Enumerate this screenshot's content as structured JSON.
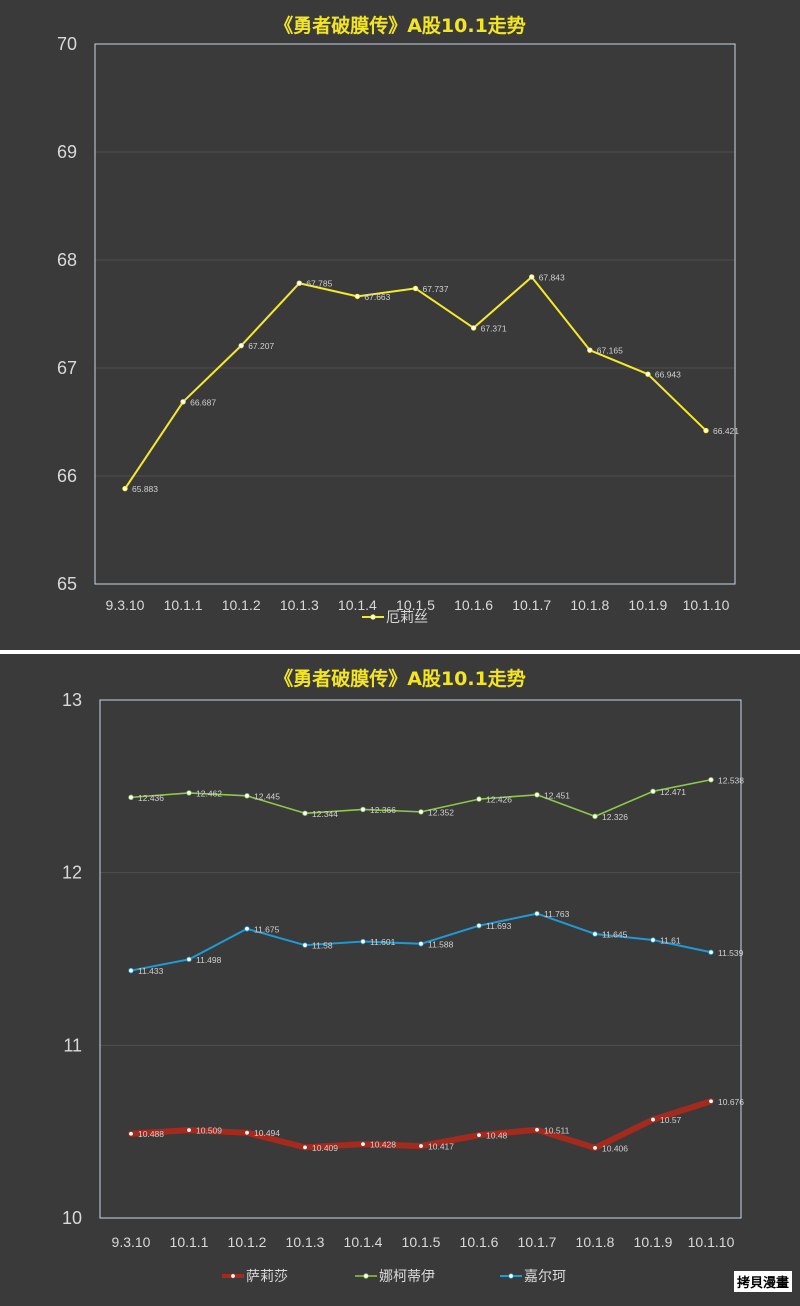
{
  "chart_data": [
    {
      "type": "line",
      "title": "《勇者破膜传》A股10.1走势",
      "categories": [
        "9.3.10",
        "10.1.1",
        "10.1.2",
        "10.1.3",
        "10.1.4",
        "10.1.5",
        "10.1.6",
        "10.1.7",
        "10.1.8",
        "10.1.9",
        "10.1.10"
      ],
      "ylim": [
        65,
        70
      ],
      "yticks": [
        "65",
        "66",
        "67",
        "68",
        "69",
        "70"
      ],
      "grid": true,
      "legend_position": "bottom",
      "series": [
        {
          "name": "厄莉丝",
          "color": "#f5ea2a",
          "values": [
            65.883,
            66.687,
            67.207,
            67.785,
            67.663,
            67.737,
            67.371,
            67.843,
            67.165,
            66.943,
            66.421
          ],
          "labels": [
            "65.883",
            "66.687",
            "67.207",
            "67.785",
            "67.663",
            "67.737",
            "67.371",
            "67.843",
            "67.165",
            "66.943",
            "66.421"
          ]
        }
      ]
    },
    {
      "type": "line",
      "title": "《勇者破膜传》A股10.1走势",
      "categories": [
        "9.3.10",
        "10.1.1",
        "10.1.2",
        "10.1.3",
        "10.1.4",
        "10.1.5",
        "10.1.6",
        "10.1.7",
        "10.1.8",
        "10.1.9",
        "10.1.10"
      ],
      "ylim": [
        10,
        13
      ],
      "yticks": [
        "10",
        "11",
        "12",
        "13"
      ],
      "grid": true,
      "legend_position": "bottom",
      "series": [
        {
          "name": "萨莉莎",
          "color": "#a52a1e",
          "values": [
            10.488,
            10.509,
            10.494,
            10.409,
            10.428,
            10.417,
            10.48,
            10.511,
            10.406,
            10.57,
            10.676
          ],
          "labels": [
            "10.488",
            "10.509",
            "10.494",
            "10.409",
            "10.428",
            "10.417",
            "10.48",
            "10.511",
            "10.406",
            "10.57",
            "10.676"
          ]
        },
        {
          "name": "娜柯蒂伊",
          "color": "#8ec84a",
          "values": [
            12.436,
            12.462,
            12.445,
            12.344,
            12.366,
            12.352,
            12.426,
            12.451,
            12.326,
            12.471,
            12.538
          ],
          "labels": [
            "12.436",
            "12.462",
            "12.445",
            "12.344",
            "12.366",
            "12.352",
            "12.426",
            "12.451",
            "12.326",
            "12.471",
            "12.538"
          ]
        },
        {
          "name": "嘉尔珂",
          "color": "#1e9bd7",
          "values": [
            11.433,
            11.498,
            11.675,
            11.58,
            11.601,
            11.588,
            11.693,
            11.763,
            11.645,
            11.61,
            11.539
          ],
          "labels": [
            "11.433",
            "11.498",
            "11.675",
            "11.58",
            "11.601",
            "11.588",
            "11.693",
            "11.763",
            "11.645",
            "11.61",
            "11.539"
          ]
        }
      ]
    }
  ],
  "watermark": "拷貝漫畫"
}
